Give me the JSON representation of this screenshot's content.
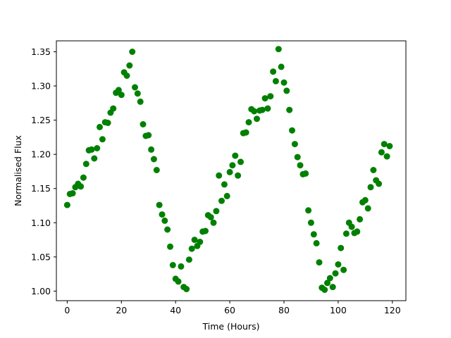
{
  "chart_data": {
    "type": "scatter",
    "title": "",
    "xlabel": "Time (Hours)",
    "ylabel": "Normalised Flux",
    "xlim": [
      -4,
      125
    ],
    "ylim": [
      0.986,
      1.366
    ],
    "xticks": [
      0,
      20,
      40,
      60,
      80,
      100,
      120
    ],
    "yticks": [
      1.0,
      1.05,
      1.1,
      1.15,
      1.2,
      1.25,
      1.3,
      1.35
    ],
    "yticks_labels": [
      "1.00",
      "1.05",
      "1.10",
      "1.15",
      "1.20",
      "1.25",
      "1.30",
      "1.35"
    ],
    "grid": false,
    "legend": "none",
    "marker_color": "#008000",
    "series": [
      {
        "x": [
          0,
          1,
          2,
          3,
          4,
          5,
          6,
          7,
          8,
          9,
          10,
          11,
          12,
          13,
          14,
          15,
          16,
          17,
          18,
          19,
          20,
          21,
          22,
          23,
          24,
          25,
          26,
          27,
          28,
          29,
          30,
          31,
          32,
          33,
          34,
          35,
          36,
          37,
          38,
          39,
          40,
          41,
          42,
          43,
          44,
          45,
          46,
          47,
          48,
          49,
          50,
          51,
          52,
          53,
          54,
          55,
          56,
          57,
          58,
          59,
          60,
          61,
          62,
          63,
          64,
          65,
          66,
          67,
          68,
          69,
          70,
          71,
          72,
          73,
          74,
          75,
          76,
          77,
          78,
          79,
          80,
          81,
          82,
          83,
          84,
          85,
          86,
          87,
          88,
          89,
          90,
          91,
          92,
          93,
          94,
          95,
          96,
          97,
          98,
          99,
          100,
          101,
          102,
          103,
          104,
          105,
          106,
          107,
          108,
          109,
          110,
          111,
          112,
          113,
          114,
          115,
          116,
          117,
          118,
          119
        ],
        "y": [
          1.126,
          1.142,
          1.143,
          1.152,
          1.157,
          1.153,
          1.166,
          1.186,
          1.206,
          1.207,
          1.194,
          1.209,
          1.24,
          1.222,
          1.247,
          1.246,
          1.261,
          1.267,
          1.29,
          1.294,
          1.287,
          1.32,
          1.315,
          1.33,
          1.35,
          1.298,
          1.289,
          1.277,
          1.244,
          1.227,
          1.228,
          1.207,
          1.193,
          1.177,
          1.126,
          1.112,
          1.103,
          1.09,
          1.065,
          1.038,
          1.018,
          1.014,
          1.036,
          1.006,
          1.003,
          1.046,
          1.062,
          1.075,
          1.066,
          1.072,
          1.087,
          1.088,
          1.111,
          1.108,
          1.1,
          1.117,
          1.169,
          1.132,
          1.156,
          1.139,
          1.174,
          1.184,
          1.198,
          1.169,
          1.189,
          1.231,
          1.232,
          1.247,
          1.266,
          1.263,
          1.252,
          1.264,
          1.265,
          1.282,
          1.267,
          1.285,
          1.321,
          1.307,
          1.354,
          1.328,
          1.305,
          1.293,
          1.265,
          1.235,
          1.215,
          1.196,
          1.184,
          1.171,
          1.172,
          1.118,
          1.1,
          1.083,
          1.07,
          1.042,
          1.005,
          1.002,
          1.012,
          1.019,
          1.006,
          1.026,
          1.039,
          1.063,
          1.031,
          1.084,
          1.1,
          1.094,
          1.085,
          1.087,
          1.105,
          1.13,
          1.133,
          1.121,
          1.152,
          1.177,
          1.162,
          1.157,
          1.203,
          1.215,
          1.197,
          1.212
        ]
      }
    ]
  }
}
